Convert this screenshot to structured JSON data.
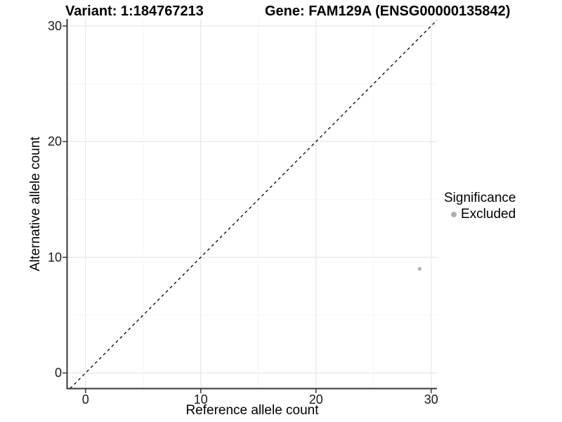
{
  "chart_data": {
    "type": "scatter",
    "title_variant": "Variant: 1:184767213",
    "title_gene": "Gene: FAM129A (ENSG00000135842)",
    "xlabel": "Reference allele count",
    "ylabel": "Alternative allele count",
    "x_ticks": [
      0,
      10,
      20,
      30
    ],
    "x_tick_labels": [
      "0",
      "10",
      "20",
      "30"
    ],
    "y_ticks": [
      0,
      10,
      20,
      30
    ],
    "y_tick_labels": [
      "0",
      "10",
      "20",
      "30"
    ],
    "x_minor_ticks": [
      5,
      15,
      25
    ],
    "y_minor_ticks": [
      5,
      15,
      25
    ],
    "xlim": [
      -1.6,
      30.5
    ],
    "ylim": [
      -1.35,
      30.6
    ],
    "grid": true,
    "legend_position": "right",
    "identity_line": {
      "equation": "y = x",
      "style": "dashed",
      "color": "#111111"
    },
    "points": [
      {
        "x": 29,
        "y": 9,
        "series": "Excluded",
        "color": "#b0b0b0"
      }
    ],
    "legend": {
      "title": "Significance",
      "items": [
        {
          "label": "Excluded",
          "color": "#b0b0b0",
          "marker": "circle"
        }
      ]
    },
    "colors": {
      "axis": "#383838",
      "tick": "#383838",
      "grid_major": "#e8e8e8",
      "grid_minor": "#f4f4f4",
      "text": "#000000"
    }
  }
}
